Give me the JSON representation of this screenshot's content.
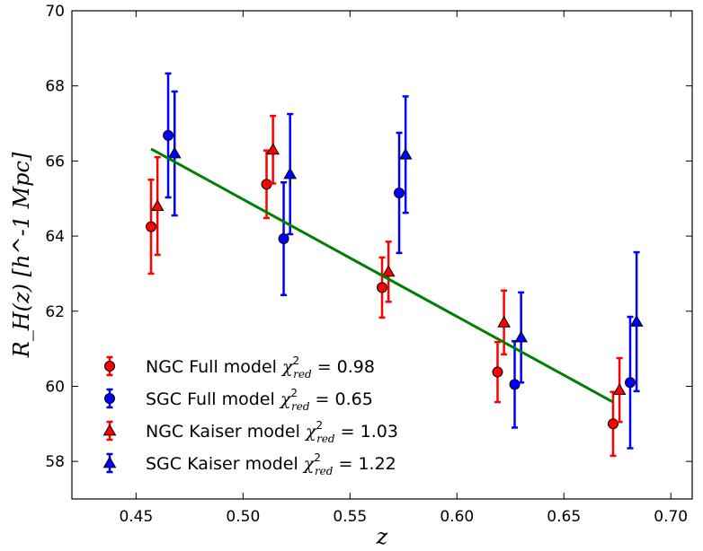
{
  "chart_data": {
    "type": "scatter",
    "title": "",
    "xlabel": "z",
    "ylabel": "R_H(z) [h^-1 Mpc]",
    "xlim": [
      0.42,
      0.71
    ],
    "ylim": [
      57,
      70
    ],
    "x_ticks": [
      "0.45",
      "0.50",
      "0.55",
      "0.60",
      "0.65",
      "0.70"
    ],
    "y_ticks": [
      "58",
      "60",
      "62",
      "64",
      "66",
      "68",
      "70"
    ],
    "grid": false,
    "legend_position": "lower-left",
    "series": [
      {
        "name": "NGC Full model",
        "chi2_label": "0.98",
        "color": "#ff0000",
        "marker": "circle",
        "points": [
          {
            "x": 0.457,
            "y": 64.25,
            "err_lo": 1.25,
            "err_hi": 1.25
          },
          {
            "x": 0.511,
            "y": 65.38,
            "err_lo": 0.9,
            "err_hi": 0.9
          },
          {
            "x": 0.565,
            "y": 62.63,
            "err_lo": 0.8,
            "err_hi": 0.8
          },
          {
            "x": 0.619,
            "y": 60.38,
            "err_lo": 0.8,
            "err_hi": 0.8
          },
          {
            "x": 0.673,
            "y": 59.0,
            "err_lo": 0.85,
            "err_hi": 0.85
          }
        ]
      },
      {
        "name": "SGC Full model",
        "chi2_label": "0.65",
        "color": "#0000ff",
        "marker": "circle",
        "points": [
          {
            "x": 0.465,
            "y": 66.68,
            "err_lo": 1.65,
            "err_hi": 1.65
          },
          {
            "x": 0.519,
            "y": 63.93,
            "err_lo": 1.5,
            "err_hi": 1.5
          },
          {
            "x": 0.573,
            "y": 65.15,
            "err_lo": 1.6,
            "err_hi": 1.6
          },
          {
            "x": 0.627,
            "y": 60.05,
            "err_lo": 1.15,
            "err_hi": 1.15
          },
          {
            "x": 0.681,
            "y": 60.1,
            "err_lo": 1.75,
            "err_hi": 1.75
          }
        ]
      },
      {
        "name": "NGC Kaiser model",
        "chi2_label": "1.03",
        "color": "#ff0000",
        "marker": "triangle",
        "points": [
          {
            "x": 0.46,
            "y": 64.8,
            "err_lo": 1.3,
            "err_hi": 1.3
          },
          {
            "x": 0.514,
            "y": 66.3,
            "err_lo": 0.9,
            "err_hi": 0.9
          },
          {
            "x": 0.568,
            "y": 63.05,
            "err_lo": 0.8,
            "err_hi": 0.8
          },
          {
            "x": 0.622,
            "y": 61.7,
            "err_lo": 0.85,
            "err_hi": 0.85
          },
          {
            "x": 0.676,
            "y": 59.9,
            "err_lo": 0.85,
            "err_hi": 0.85
          }
        ]
      },
      {
        "name": "SGC Kaiser model",
        "chi2_label": "1.22",
        "color": "#0000ff",
        "marker": "triangle",
        "points": [
          {
            "x": 0.468,
            "y": 66.2,
            "err_lo": 1.65,
            "err_hi": 1.65
          },
          {
            "x": 0.522,
            "y": 65.65,
            "err_lo": 1.6,
            "err_hi": 1.6
          },
          {
            "x": 0.576,
            "y": 66.17,
            "err_lo": 1.55,
            "err_hi": 1.55
          },
          {
            "x": 0.63,
            "y": 61.3,
            "err_lo": 1.2,
            "err_hi": 1.2
          },
          {
            "x": 0.684,
            "y": 61.72,
            "err_lo": 1.85,
            "err_hi": 1.85
          }
        ]
      }
    ],
    "fit_line": {
      "color": "#008000",
      "x": [
        0.457,
        0.673
      ],
      "y": [
        66.32,
        59.58
      ]
    }
  }
}
